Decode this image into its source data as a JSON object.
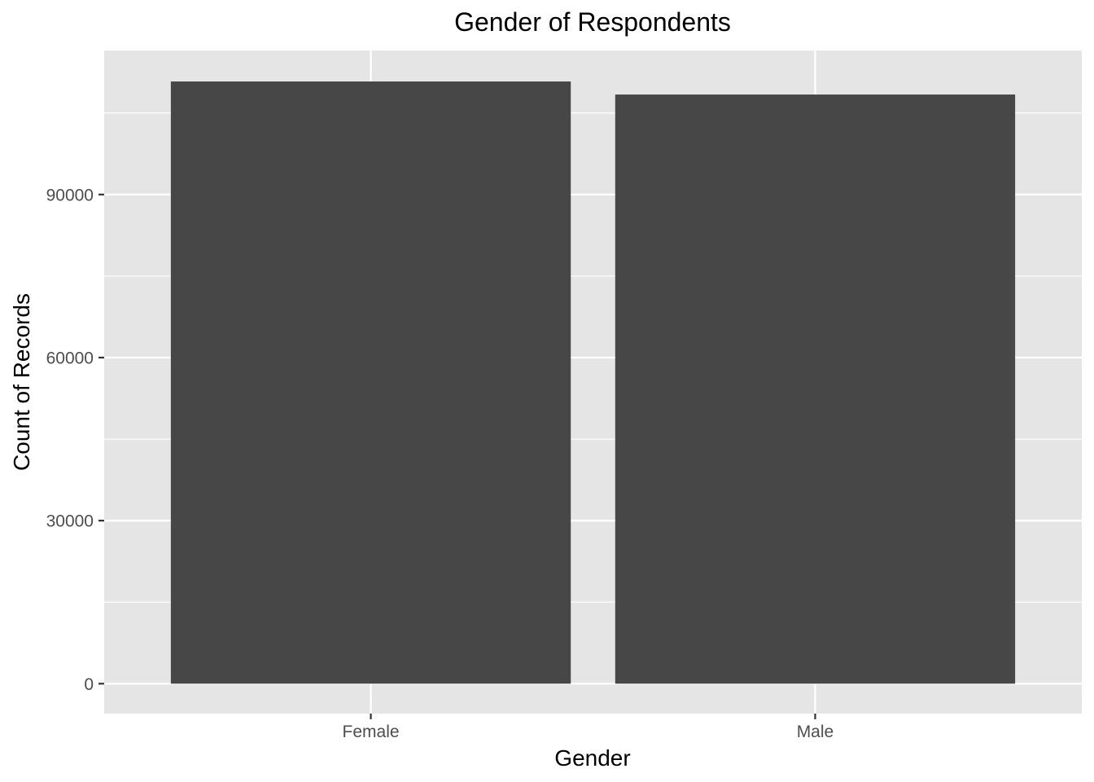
{
  "chart_data": {
    "type": "bar",
    "title": "Gender of Respondents",
    "xlabel": "Gender",
    "ylabel": "Count of Records",
    "categories": [
      "Female",
      "Male"
    ],
    "values": [
      110800,
      108400
    ],
    "ylim": [
      -5500,
      116500
    ],
    "yticks": [
      0,
      30000,
      60000,
      90000
    ],
    "ytick_labels": [
      "0",
      "30000",
      "60000",
      "90000"
    ],
    "grid": true,
    "legend": "none",
    "colors": {
      "bar": "#474747",
      "panel": "#e5e5e5",
      "grid": "#ffffff",
      "tick_text": "#4d4d4d",
      "text": "#000000"
    }
  }
}
